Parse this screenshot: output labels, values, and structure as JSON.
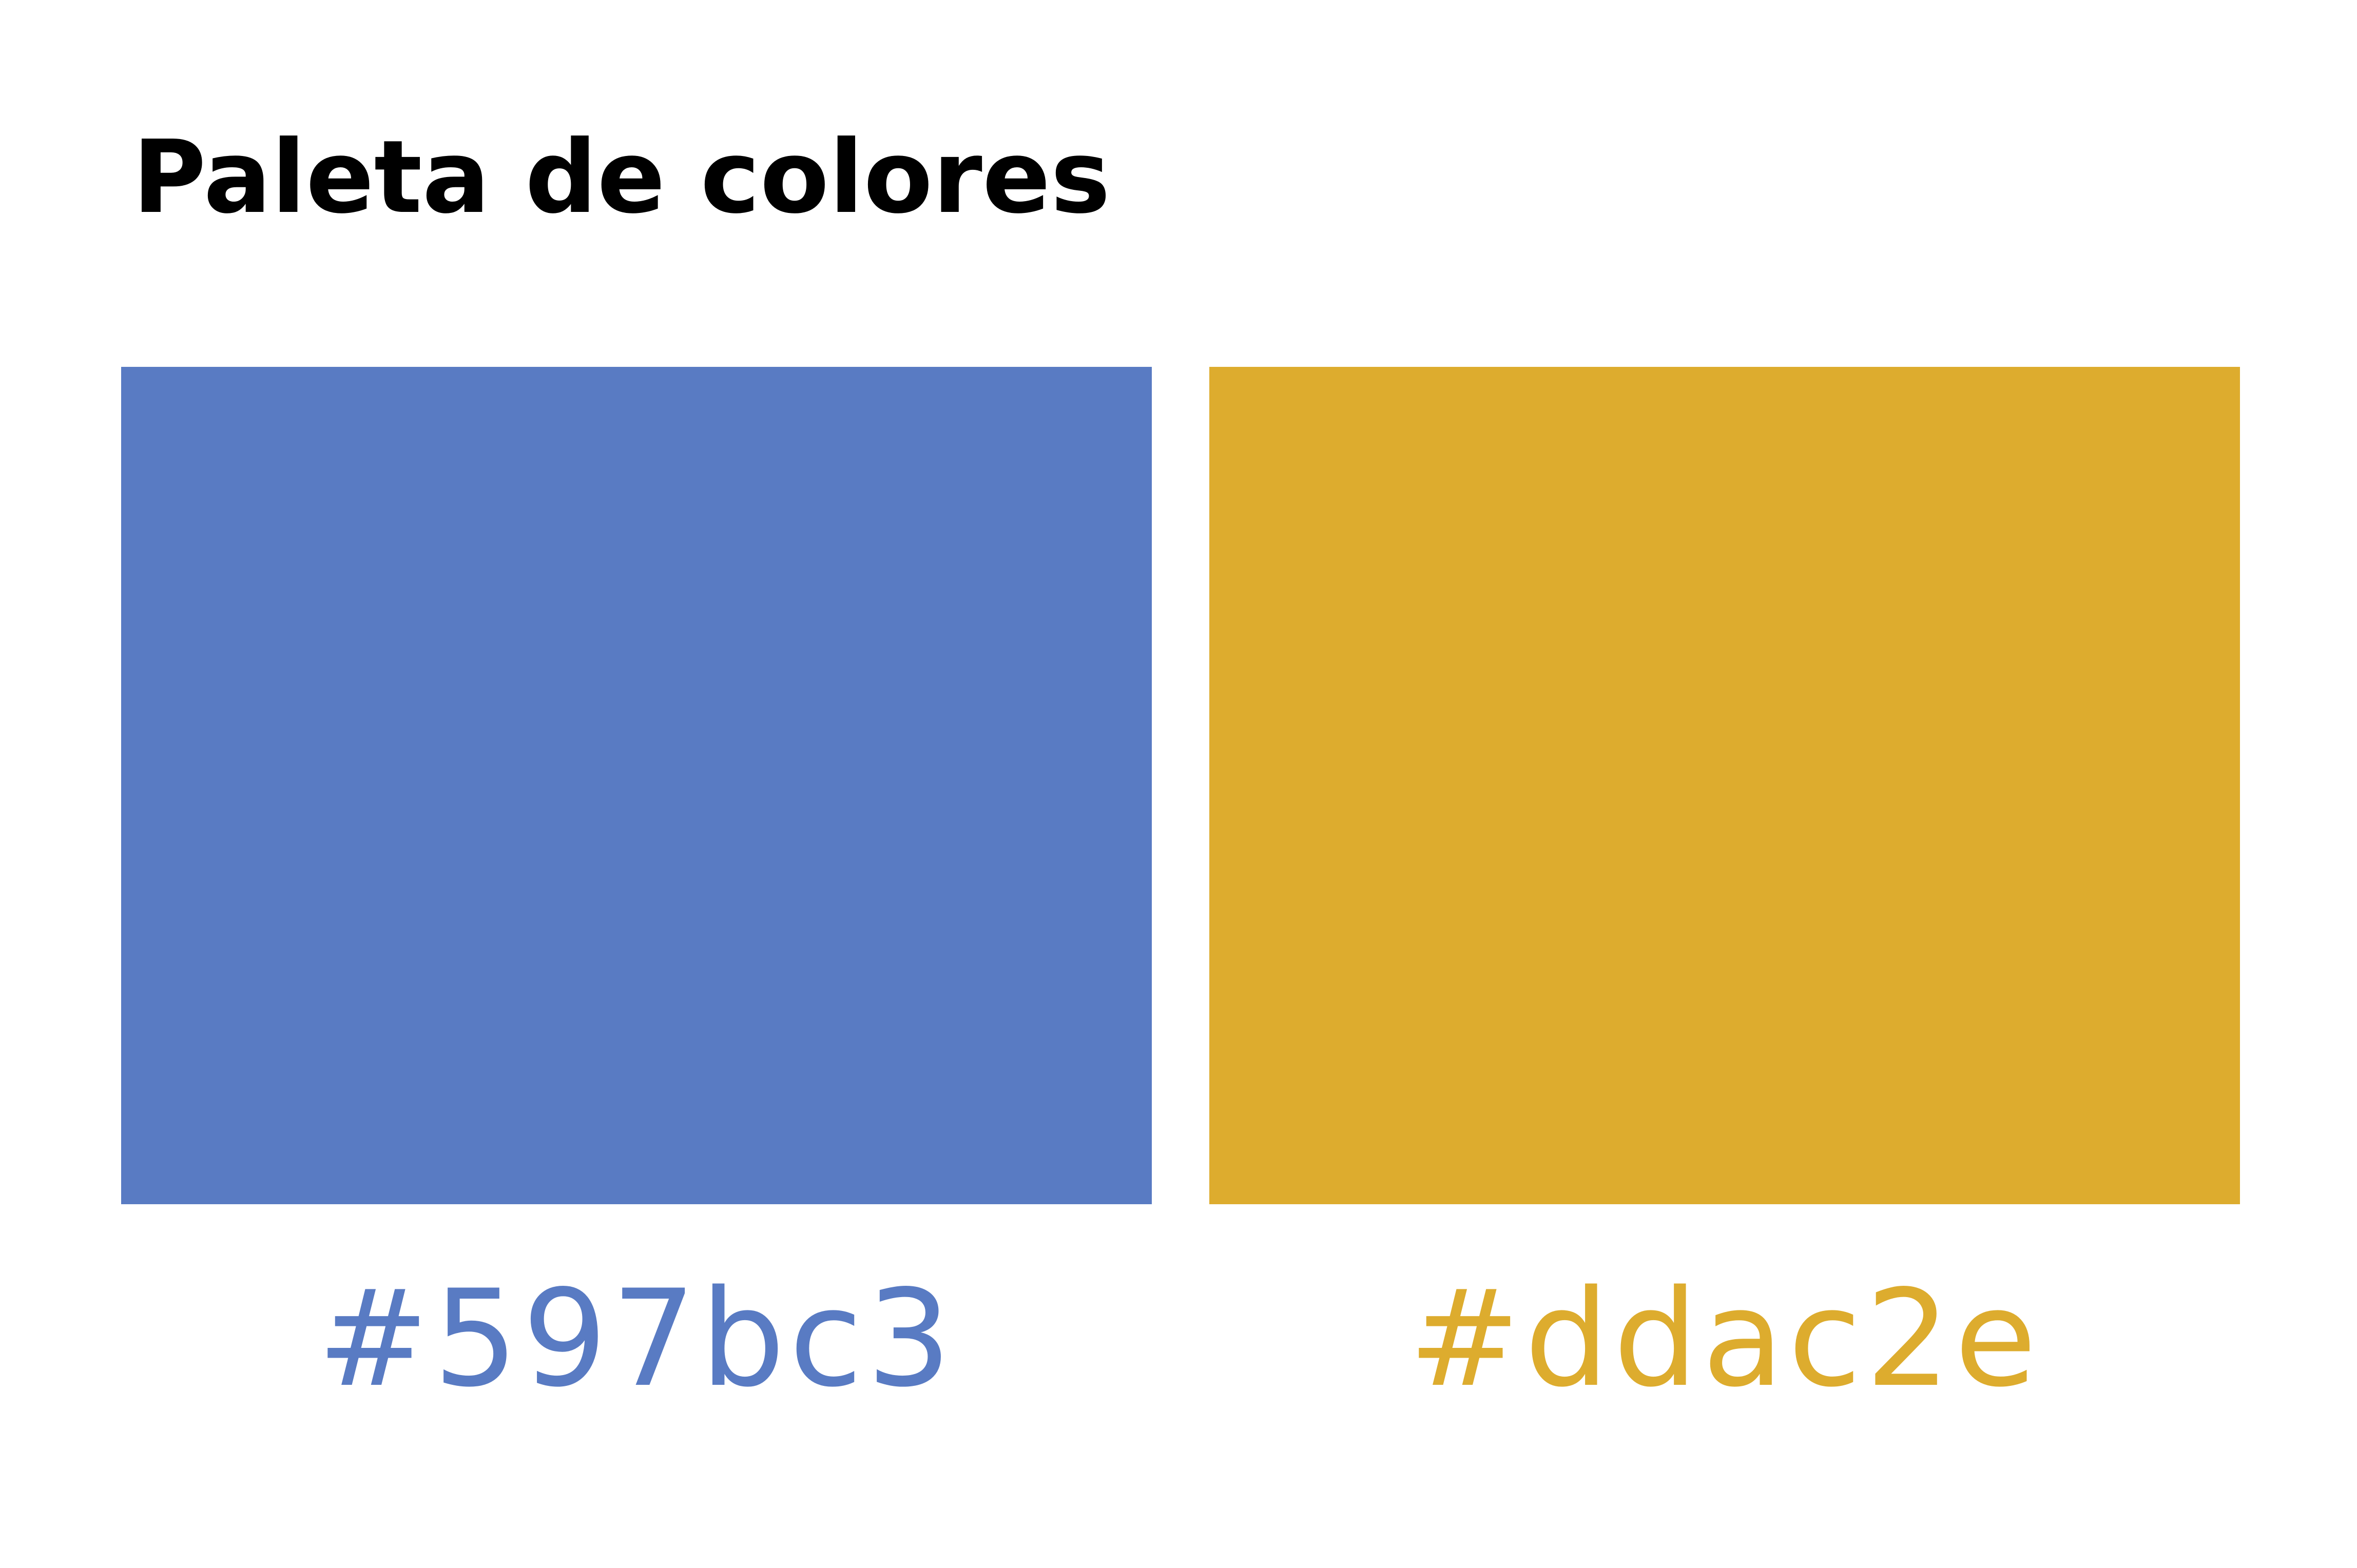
{
  "title": "Paleta de colores",
  "swatches": [
    {
      "color": "#597bc3",
      "label": "#597bc3"
    },
    {
      "color": "#ddac2e",
      "label": "#ddac2e"
    }
  ]
}
